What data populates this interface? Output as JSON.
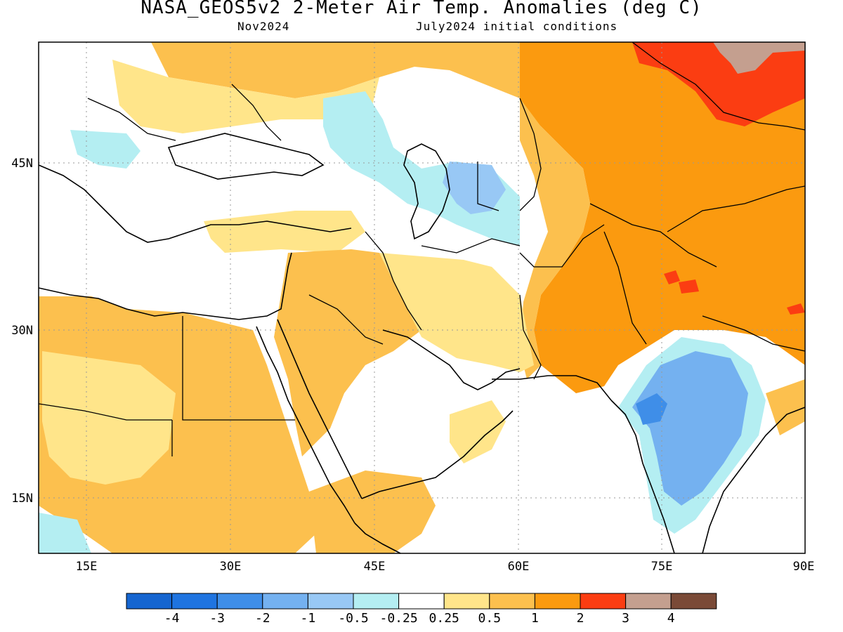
{
  "title": "NASA_GEOS5v2 2-Meter Air Temp. Anomalies (deg C)",
  "subtitle_left": "Nov2024",
  "subtitle_right": "July2024 initial conditions",
  "lon_labels": [
    "15E",
    "30E",
    "45E",
    "60E",
    "75E",
    "90E"
  ],
  "lat_labels": [
    "45N",
    "30N",
    "15N"
  ],
  "colorbar": {
    "colors": [
      "#1565d0",
      "#1f74e0",
      "#3f8ee8",
      "#74b1f0",
      "#98c8f5",
      "#b4eef2",
      "#ffffff",
      "#ffe58a",
      "#fcc04e",
      "#fb9a0f",
      "#fb3d12",
      "#c49f8f",
      "#7a4a37"
    ],
    "labels": [
      "-4",
      "-3",
      "-2",
      "-1",
      "-0.5",
      "-0.25",
      "0.25",
      "0.5",
      "1",
      "2",
      "3",
      "4"
    ]
  },
  "palette": {
    "hot": "#fb9a0f",
    "warm": "#fcc04e",
    "mild": "#ffe58a",
    "very_hot": "#fb3d12",
    "extreme": "#c49f8f",
    "cool": "#98c8f5",
    "cold": "#74b1f0",
    "colder": "#3f8ee8",
    "slightly_cool": "#b4eef2"
  }
}
